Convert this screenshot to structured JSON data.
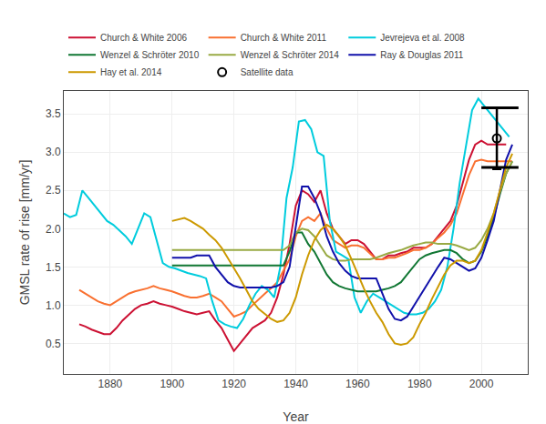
{
  "chart_data": {
    "type": "line",
    "xlabel": "Year",
    "ylabel": "GMSL rate of rise [mm/yr]",
    "xlim": [
      1865,
      2015
    ],
    "ylim": [
      0.1,
      3.8
    ],
    "xticks": [
      1880,
      1900,
      1920,
      1940,
      1960,
      1980,
      2000
    ],
    "yticks": [
      0.5,
      {
        "value": 1.0,
        "label": "1.0"
      },
      1.5,
      {
        "value": 2.0,
        "label": "2.0"
      },
      2.5,
      {
        "value": 3.0,
        "label": "3.0"
      },
      3.5
    ],
    "grid": true,
    "legend": "upper left",
    "series": [
      {
        "name": "Church & White 2006",
        "color": "#cc1133",
        "x": [
          1870,
          1872,
          1874,
          1876,
          1878,
          1880,
          1882,
          1884,
          1886,
          1888,
          1890,
          1892,
          1894,
          1896,
          1898,
          1900,
          1902,
          1904,
          1906,
          1908,
          1910,
          1912,
          1914,
          1916,
          1918,
          1920,
          1922,
          1924,
          1926,
          1928,
          1930,
          1932,
          1934,
          1936,
          1938,
          1940,
          1942,
          1944,
          1946,
          1948,
          1950,
          1952,
          1954,
          1956,
          1958,
          1960,
          1962,
          1964,
          1966,
          1968,
          1970,
          1972,
          1974,
          1976,
          1978,
          1980,
          1982,
          1984,
          1986,
          1988,
          1990,
          1992,
          1994,
          1996,
          1998,
          2000,
          2002,
          2004,
          2006,
          2008
        ],
        "values": [
          0.75,
          0.72,
          0.68,
          0.65,
          0.62,
          0.62,
          0.7,
          0.8,
          0.88,
          0.95,
          1.0,
          1.02,
          1.05,
          1.02,
          1.0,
          0.98,
          0.95,
          0.92,
          0.9,
          0.88,
          0.9,
          0.92,
          0.8,
          0.7,
          0.55,
          0.4,
          0.5,
          0.6,
          0.7,
          0.75,
          0.8,
          0.9,
          1.1,
          1.4,
          1.8,
          2.3,
          2.5,
          2.45,
          2.35,
          2.5,
          2.2,
          2.0,
          1.9,
          1.8,
          1.85,
          1.85,
          1.8,
          1.7,
          1.6,
          1.6,
          1.65,
          1.65,
          1.68,
          1.7,
          1.75,
          1.75,
          1.75,
          1.8,
          1.9,
          2.0,
          2.1,
          2.3,
          2.6,
          2.9,
          3.1,
          3.15,
          3.1,
          3.1,
          3.1,
          3.1
        ]
      },
      {
        "name": "Church & White 2011",
        "color": "#f97030",
        "x": [
          1870,
          1872,
          1874,
          1876,
          1878,
          1880,
          1882,
          1884,
          1886,
          1888,
          1890,
          1892,
          1894,
          1896,
          1898,
          1900,
          1902,
          1904,
          1906,
          1908,
          1910,
          1912,
          1914,
          1916,
          1918,
          1920,
          1922,
          1924,
          1926,
          1928,
          1930,
          1932,
          1934,
          1936,
          1938,
          1940,
          1942,
          1944,
          1946,
          1948,
          1950,
          1952,
          1954,
          1956,
          1958,
          1960,
          1962,
          1964,
          1966,
          1968,
          1970,
          1972,
          1974,
          1976,
          1978,
          1980,
          1982,
          1984,
          1986,
          1988,
          1990,
          1992,
          1994,
          1996,
          1998,
          2000,
          2002,
          2004,
          2006,
          2008,
          2010
        ],
        "values": [
          1.2,
          1.15,
          1.1,
          1.05,
          1.02,
          1.0,
          1.05,
          1.1,
          1.15,
          1.18,
          1.2,
          1.22,
          1.25,
          1.22,
          1.2,
          1.18,
          1.15,
          1.12,
          1.1,
          1.1,
          1.12,
          1.15,
          1.1,
          1.05,
          0.95,
          0.85,
          0.88,
          0.92,
          1.0,
          1.08,
          1.15,
          1.22,
          1.3,
          1.45,
          1.6,
          1.9,
          2.1,
          2.15,
          2.1,
          2.2,
          2.0,
          1.85,
          1.8,
          1.75,
          1.78,
          1.78,
          1.75,
          1.68,
          1.6,
          1.6,
          1.62,
          1.62,
          1.65,
          1.68,
          1.72,
          1.72,
          1.75,
          1.8,
          1.88,
          1.95,
          2.05,
          2.2,
          2.45,
          2.7,
          2.88,
          2.9,
          2.88,
          2.88,
          2.88,
          2.88,
          2.88
        ]
      },
      {
        "name": "Jevrejeva et al. 2008",
        "color": "#00ccdd",
        "x": [
          1865,
          1867,
          1869,
          1871,
          1873,
          1875,
          1877,
          1879,
          1881,
          1883,
          1885,
          1887,
          1889,
          1891,
          1893,
          1895,
          1897,
          1899,
          1901,
          1903,
          1905,
          1907,
          1909,
          1911,
          1913,
          1915,
          1917,
          1919,
          1921,
          1923,
          1925,
          1927,
          1929,
          1931,
          1933,
          1935,
          1937,
          1939,
          1941,
          1943,
          1945,
          1947,
          1949,
          1951,
          1953,
          1955,
          1957,
          1959,
          1961,
          1963,
          1965,
          1967,
          1969,
          1971,
          1973,
          1975,
          1977,
          1979,
          1981,
          1983,
          1985,
          1987,
          1989,
          1991,
          1993,
          1995,
          1997,
          1999,
          2001,
          2003,
          2005,
          2007,
          2009
        ],
        "values": [
          2.2,
          2.15,
          2.18,
          2.5,
          2.4,
          2.3,
          2.2,
          2.1,
          2.05,
          1.98,
          1.9,
          1.8,
          2.0,
          2.2,
          2.15,
          1.85,
          1.55,
          1.5,
          1.48,
          1.45,
          1.42,
          1.4,
          1.38,
          1.35,
          1.05,
          0.8,
          0.75,
          0.72,
          0.7,
          0.82,
          1.0,
          1.15,
          1.25,
          1.2,
          1.1,
          1.5,
          2.4,
          2.8,
          3.4,
          3.42,
          3.3,
          3.0,
          2.95,
          2.1,
          1.7,
          1.65,
          1.6,
          1.1,
          0.9,
          1.05,
          1.15,
          1.1,
          1.05,
          1.0,
          0.95,
          0.9,
          0.88,
          0.88,
          0.9,
          0.95,
          1.05,
          1.2,
          1.5,
          2.0,
          2.6,
          3.1,
          3.55,
          3.7,
          3.6,
          3.5,
          3.4,
          3.3,
          3.2
        ]
      },
      {
        "name": "Wenzel & Schröter 2010",
        "color": "#117733",
        "x": [
          1900,
          1902,
          1904,
          1906,
          1908,
          1910,
          1912,
          1914,
          1916,
          1918,
          1920,
          1922,
          1924,
          1926,
          1928,
          1930,
          1932,
          1934,
          1936,
          1938,
          1940,
          1942,
          1944,
          1946,
          1948,
          1950,
          1952,
          1954,
          1956,
          1958,
          1960,
          1962,
          1964,
          1966,
          1968,
          1970,
          1972,
          1974,
          1976,
          1978,
          1980,
          1982,
          1984,
          1986,
          1988,
          1990,
          1992,
          1994,
          1996,
          1998,
          2000,
          2002,
          2004,
          2006,
          2008,
          2010
        ],
        "values": [
          1.52,
          1.52,
          1.52,
          1.52,
          1.52,
          1.52,
          1.52,
          1.52,
          1.52,
          1.52,
          1.52,
          1.52,
          1.52,
          1.52,
          1.52,
          1.52,
          1.52,
          1.52,
          1.52,
          1.7,
          1.95,
          1.95,
          1.8,
          1.7,
          1.55,
          1.4,
          1.3,
          1.25,
          1.22,
          1.2,
          1.18,
          1.18,
          1.18,
          1.18,
          1.2,
          1.22,
          1.25,
          1.3,
          1.4,
          1.5,
          1.6,
          1.65,
          1.68,
          1.7,
          1.72,
          1.72,
          1.68,
          1.6,
          1.55,
          1.58,
          1.7,
          1.9,
          2.15,
          2.45,
          2.72,
          2.88
        ]
      },
      {
        "name": "Wenzel & Schröter 2014",
        "color": "#99aa44",
        "x": [
          1900,
          1902,
          1904,
          1906,
          1908,
          1910,
          1912,
          1914,
          1916,
          1918,
          1920,
          1922,
          1924,
          1926,
          1928,
          1930,
          1932,
          1934,
          1936,
          1938,
          1940,
          1942,
          1944,
          1946,
          1948,
          1950,
          1952,
          1954,
          1956,
          1958,
          1960,
          1962,
          1964,
          1966,
          1968,
          1970,
          1972,
          1974,
          1976,
          1978,
          1980,
          1982,
          1984,
          1986,
          1988,
          1990,
          1992,
          1994,
          1996,
          1998,
          2000,
          2002,
          2004,
          2006,
          2008,
          2010
        ],
        "values": [
          1.72,
          1.72,
          1.72,
          1.72,
          1.72,
          1.72,
          1.72,
          1.72,
          1.72,
          1.72,
          1.72,
          1.72,
          1.72,
          1.72,
          1.72,
          1.72,
          1.72,
          1.72,
          1.72,
          1.78,
          1.95,
          2.0,
          1.98,
          1.9,
          1.78,
          1.65,
          1.6,
          1.58,
          1.58,
          1.6,
          1.6,
          1.6,
          1.6,
          1.62,
          1.65,
          1.68,
          1.7,
          1.72,
          1.75,
          1.78,
          1.8,
          1.82,
          1.82,
          1.8,
          1.8,
          1.8,
          1.78,
          1.75,
          1.72,
          1.75,
          1.85,
          2.0,
          2.2,
          2.48,
          2.72,
          2.88
        ]
      },
      {
        "name": "Ray & Douglas 2011",
        "color": "#1111aa",
        "x": [
          1900,
          1902,
          1904,
          1906,
          1908,
          1910,
          1912,
          1914,
          1916,
          1918,
          1920,
          1922,
          1924,
          1926,
          1928,
          1930,
          1932,
          1934,
          1936,
          1938,
          1940,
          1942,
          1944,
          1946,
          1948,
          1950,
          1952,
          1954,
          1956,
          1958,
          1960,
          1962,
          1964,
          1966,
          1968,
          1970,
          1972,
          1974,
          1976,
          1978,
          1980,
          1982,
          1984,
          1986,
          1988,
          1990,
          1992,
          1994,
          1996,
          1998,
          2000,
          2002,
          2004,
          2006,
          2008,
          2010
        ],
        "values": [
          1.62,
          1.62,
          1.62,
          1.62,
          1.65,
          1.65,
          1.65,
          1.5,
          1.4,
          1.3,
          1.25,
          1.23,
          1.23,
          1.23,
          1.23,
          1.23,
          1.23,
          1.25,
          1.3,
          1.5,
          2.0,
          2.55,
          2.55,
          2.4,
          2.2,
          1.9,
          1.7,
          1.55,
          1.45,
          1.38,
          1.35,
          1.35,
          1.35,
          1.35,
          1.15,
          0.95,
          0.82,
          0.8,
          0.85,
          0.98,
          1.12,
          1.25,
          1.38,
          1.5,
          1.62,
          1.6,
          1.55,
          1.5,
          1.45,
          1.48,
          1.62,
          1.85,
          2.1,
          2.5,
          2.9,
          3.1
        ]
      },
      {
        "name": "Hay et al. 2014",
        "color": "#cc9900",
        "x": [
          1900,
          1902,
          1904,
          1906,
          1908,
          1910,
          1912,
          1914,
          1916,
          1918,
          1920,
          1922,
          1924,
          1926,
          1928,
          1930,
          1932,
          1934,
          1936,
          1938,
          1940,
          1942,
          1944,
          1946,
          1948,
          1950,
          1952,
          1954,
          1956,
          1958,
          1960,
          1962,
          1964,
          1966,
          1968,
          1970,
          1972,
          1974,
          1976,
          1978,
          1980,
          1982,
          1984,
          1986,
          1988,
          1990,
          1992,
          1994,
          1996,
          1998,
          2000,
          2002,
          2004,
          2006,
          2008,
          2010
        ],
        "values": [
          2.1,
          2.12,
          2.14,
          2.1,
          2.05,
          2.0,
          1.92,
          1.85,
          1.75,
          1.62,
          1.48,
          1.35,
          1.2,
          1.05,
          0.95,
          0.88,
          0.82,
          0.78,
          0.8,
          0.9,
          1.1,
          1.4,
          1.65,
          1.85,
          1.98,
          2.05,
          2.0,
          1.9,
          1.78,
          1.6,
          1.4,
          1.22,
          1.05,
          0.9,
          0.78,
          0.62,
          0.5,
          0.48,
          0.5,
          0.58,
          0.75,
          0.9,
          1.08,
          1.25,
          1.4,
          1.52,
          1.58,
          1.58,
          1.55,
          1.58,
          1.72,
          1.95,
          2.2,
          2.5,
          2.8,
          2.98
        ]
      },
      {
        "name": "Satellite data",
        "type": "scatter",
        "marker": "circle-open",
        "color": "black",
        "x": [
          2005
        ],
        "values": [
          3.18
        ],
        "yerr": [
          0.4
        ]
      },
      {
        "type": "line",
        "color": "black",
        "x": [
          2000,
          2012
        ],
        "values": [
          2.8,
          2.8
        ]
      },
      {
        "type": "line",
        "color": "black",
        "x": [
          2000,
          2012
        ],
        "values": [
          3.58,
          3.58
        ]
      }
    ]
  }
}
